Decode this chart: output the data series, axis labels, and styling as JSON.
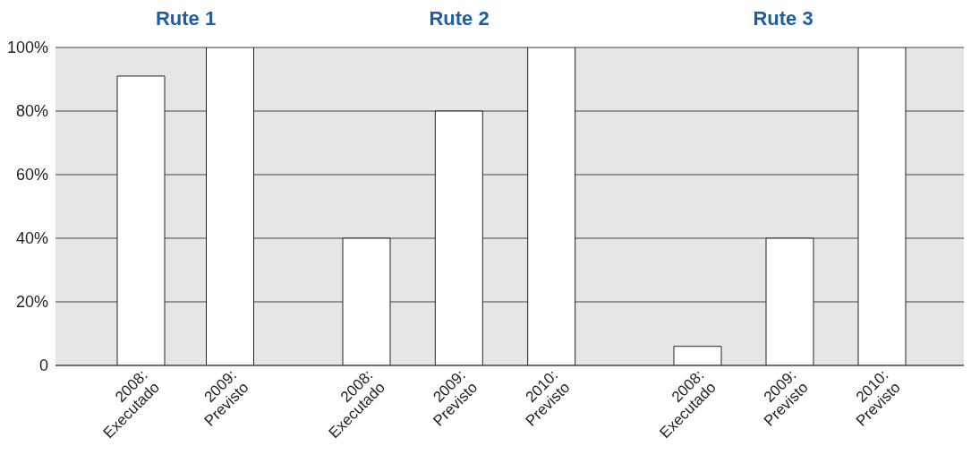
{
  "chart_data": [
    {
      "type": "bar",
      "title": "Rute 1",
      "categories": [
        "2008: Executado",
        "2009: Previsto"
      ],
      "values": [
        91,
        100
      ],
      "color": "#ffffff",
      "ylim": [
        0,
        100
      ],
      "yticks": [
        0,
        {
          "value": 20,
          "label": "20%"
        },
        {
          "value": 40,
          "label": "40%"
        },
        {
          "value": 60,
          "label": "60%"
        },
        {
          "value": 80,
          "label": "80%"
        },
        {
          "value": 100,
          "label": "100%"
        }
      ],
      "grid": "y"
    },
    {
      "type": "bar",
      "title": "Rute 2",
      "categories": [
        "2008: Executado",
        "2009: Previsto",
        "2010: Previsto"
      ],
      "values": [
        40,
        80,
        100
      ],
      "color": "#ffffff",
      "ylim": [
        0,
        100
      ],
      "yticks": [
        0,
        20,
        40,
        60,
        80,
        100
      ],
      "grid": "y",
      "tick_labels": "x"
    },
    {
      "type": "bar",
      "title": "Rute 3",
      "categories": [
        "2008: Executado",
        "2009: Previsto",
        "2010: Previsto"
      ],
      "values": [
        6,
        40,
        100
      ],
      "color": "#ffffff",
      "ylim": [
        0,
        100
      ],
      "yticks": [
        0,
        20,
        40,
        60,
        80,
        100
      ],
      "grid": "y",
      "tick_labels": "x"
    }
  ]
}
